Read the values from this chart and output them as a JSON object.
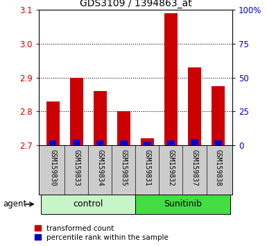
{
  "title": "GDS3109 / 1394863_at",
  "samples": [
    "GSM159830",
    "GSM159833",
    "GSM159834",
    "GSM159835",
    "GSM159831",
    "GSM159832",
    "GSM159837",
    "GSM159838"
  ],
  "red_values": [
    2.83,
    2.9,
    2.86,
    2.8,
    2.72,
    3.09,
    2.93,
    2.875
  ],
  "blue_values": [
    3.5,
    4.0,
    3.5,
    3.5,
    2.5,
    3.5,
    4.5,
    3.5
  ],
  "ylim_left": [
    2.7,
    3.1
  ],
  "ylim_right": [
    0,
    100
  ],
  "yticks_left": [
    2.7,
    2.8,
    2.9,
    3.0,
    3.1
  ],
  "yticks_right": [
    0,
    25,
    50,
    75,
    100
  ],
  "ytick_right_labels": [
    "0",
    "25",
    "50",
    "75",
    "100%"
  ],
  "groups": [
    {
      "label": "control",
      "start": 0,
      "end": 4,
      "color": "#c8f5c8"
    },
    {
      "label": "Sunitinib",
      "start": 4,
      "end": 8,
      "color": "#44dd44"
    }
  ],
  "bar_width": 0.55,
  "red_color": "#cc0000",
  "blue_color": "#0000cc",
  "title_color": "black",
  "left_tick_color": "#cc0000",
  "right_tick_color": "#0000cc",
  "grid_color": "black",
  "bg_plot_color": "#ffffff",
  "bg_sample_color": "#cccccc",
  "legend_red_label": "transformed count",
  "legend_blue_label": "percentile rank within the sample",
  "agent_label": "agent",
  "figsize": [
    3.85,
    3.54
  ],
  "dpi": 100
}
